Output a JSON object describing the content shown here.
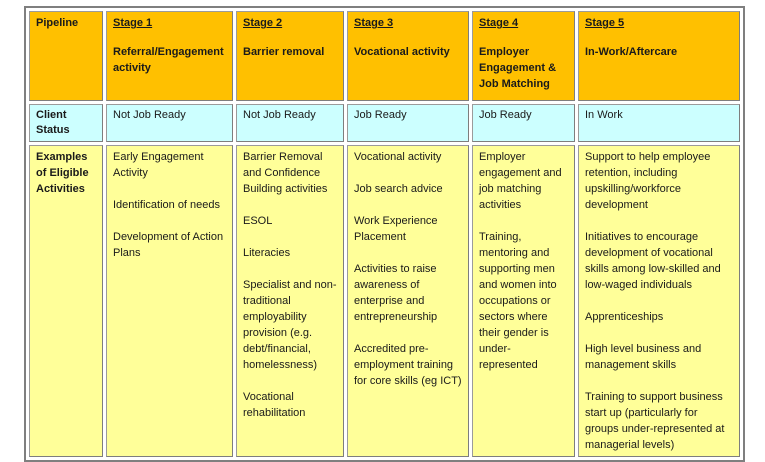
{
  "table": {
    "colors": {
      "header_bg": "#FFC000",
      "status_bg": "#CCFFFF",
      "examples_bg": "#FFFF99",
      "border": "#7F7F7F"
    },
    "header": {
      "pipeline_label": "Pipeline",
      "stages": [
        {
          "title": "Stage 1",
          "subtitle": "Referral/Engagement activity"
        },
        {
          "title": "Stage 2",
          "subtitle": "Barrier removal"
        },
        {
          "title": "Stage 3",
          "subtitle": "Vocational activity"
        },
        {
          "title": "Stage 4",
          "subtitle": "Employer Engagement & Job Matching"
        },
        {
          "title": "Stage 5",
          "subtitle": "In-Work/Aftercare"
        }
      ]
    },
    "client_status": {
      "row_label": "Client Status",
      "values": [
        "Not Job Ready",
        "Not Job Ready",
        "Job Ready",
        "Job Ready",
        "In Work"
      ]
    },
    "examples": {
      "row_label": "Examples of Eligible Activities",
      "values": [
        [
          "Early Engagement Activity",
          "Identification of needs",
          "Development of Action Plans"
        ],
        [
          "Barrier Removal and Confidence Building activities",
          "ESOL",
          "Literacies",
          "Specialist and non-traditional employability provision (e.g. debt/financial, homelessness)",
          "Vocational rehabilitation"
        ],
        [
          "Vocational activity",
          "Job search advice",
          "Work Experience Placement",
          "Activities to raise awareness of enterprise and entrepreneurship",
          "Accredited pre-employment training for core skills (eg ICT)"
        ],
        [
          "Employer engagement and job matching activities",
          "Training, mentoring and supporting men and women into occupations or sectors where their gender is under-represented"
        ],
        [
          "Support to help employee retention, including upskilling/workforce development",
          "Initiatives to encourage development of vocational skills among low-skilled and low-waged individuals",
          "Apprenticeships",
          "High level business and management skills",
          "Training to support business start up (particularly for groups under-represented at managerial levels)"
        ]
      ]
    }
  }
}
